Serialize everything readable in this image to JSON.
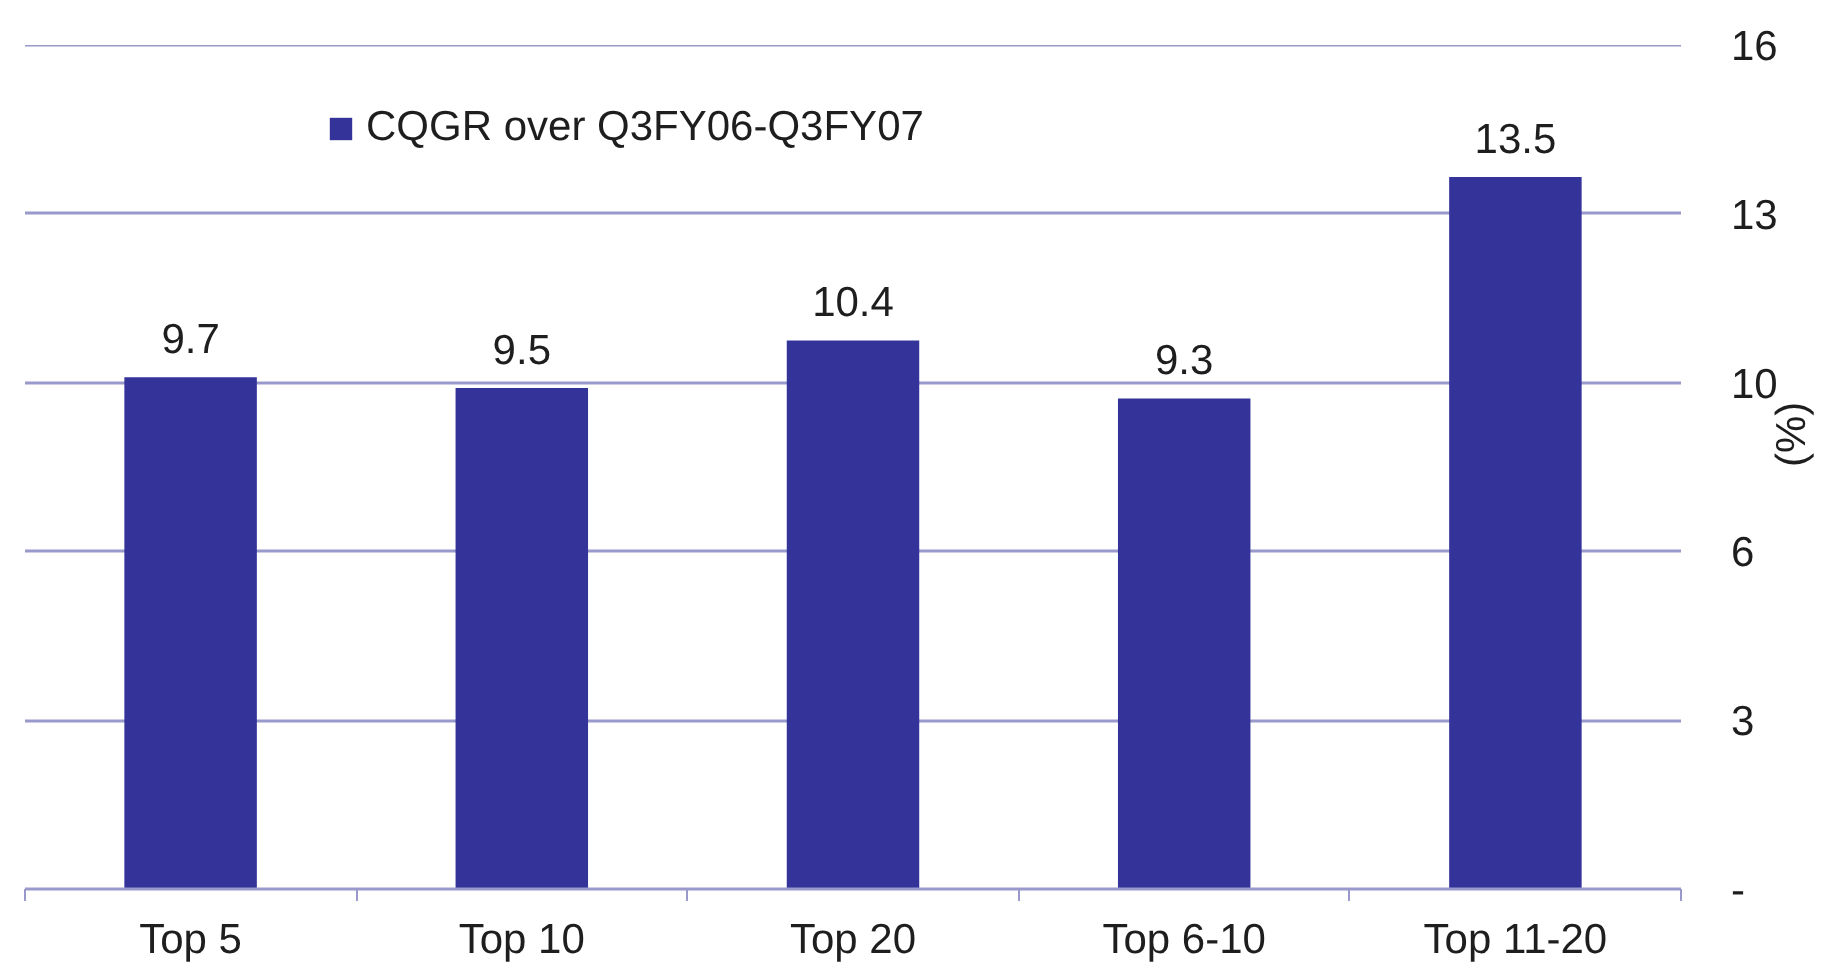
{
  "chart_data": {
    "type": "bar",
    "categories": [
      "Top 5",
      "Top 10",
      "Top 20",
      "Top 6-10",
      "Top 11-20"
    ],
    "series": [
      {
        "name": "CQGR over Q3FY06-Q3FY07",
        "color": "#343399",
        "values": [
          9.7,
          9.5,
          10.4,
          9.3,
          13.5
        ]
      }
    ],
    "ylabel": "(%)",
    "ylim": [
      0,
      16
    ],
    "yticks": [
      {
        "value": 0,
        "label": "-"
      },
      {
        "value": 3.2,
        "label": "3"
      },
      {
        "value": 6.4,
        "label": "6"
      },
      {
        "value": 9.6,
        "label": "10"
      },
      {
        "value": 12.8,
        "label": "13"
      },
      {
        "value": 16,
        "label": "16"
      }
    ],
    "grid": "y",
    "legend": "top left",
    "data_labels": true
  }
}
